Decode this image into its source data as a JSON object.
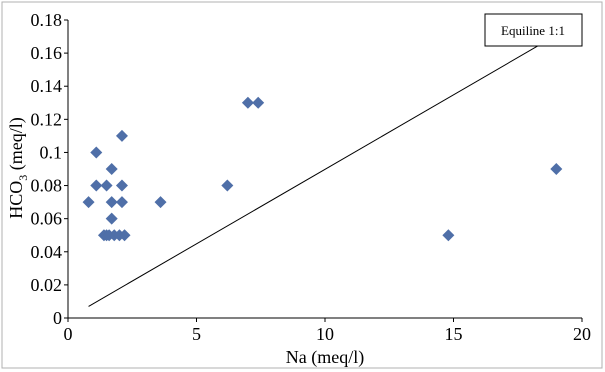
{
  "chart_data": {
    "type": "scatter",
    "xlabel": "Na (meq/l)",
    "ylabel_main": "HCO",
    "ylabel_sub": "3",
    "ylabel_tail": " (meq/l)",
    "xlim": [
      0,
      20
    ],
    "ylim": [
      0,
      0.18
    ],
    "x_ticks": [
      "0",
      "5",
      "10",
      "15",
      "20"
    ],
    "y_ticks": [
      "0",
      "0.02",
      "0.04",
      "0.06",
      "0.08",
      "0.1",
      "0.12",
      "0.14",
      "0.16",
      "0.18"
    ],
    "grid": false,
    "legend": {
      "label": "Equiline 1:1",
      "placement": "top-right"
    },
    "series": [
      {
        "marker": "diamond",
        "color": "#4f6fa8",
        "points": [
          [
            0.8,
            0.07
          ],
          [
            1.1,
            0.1
          ],
          [
            1.1,
            0.08
          ],
          [
            1.5,
            0.08
          ],
          [
            1.4,
            0.05
          ],
          [
            1.5,
            0.05
          ],
          [
            1.6,
            0.05
          ],
          [
            1.7,
            0.09
          ],
          [
            1.7,
            0.07
          ],
          [
            1.7,
            0.06
          ],
          [
            1.8,
            0.05
          ],
          [
            2.0,
            0.05
          ],
          [
            2.1,
            0.08
          ],
          [
            2.1,
            0.07
          ],
          [
            2.1,
            0.11
          ],
          [
            2.2,
            0.05
          ],
          [
            3.6,
            0.07
          ],
          [
            6.2,
            0.08
          ],
          [
            7.0,
            0.13
          ],
          [
            7.4,
            0.13
          ],
          [
            14.8,
            0.05
          ],
          [
            19.0,
            0.09
          ]
        ]
      }
    ],
    "reference_line": {
      "points": [
        [
          0.8,
          0.007
        ],
        [
          18.8,
          0.169
        ]
      ],
      "color": "#000000"
    }
  }
}
